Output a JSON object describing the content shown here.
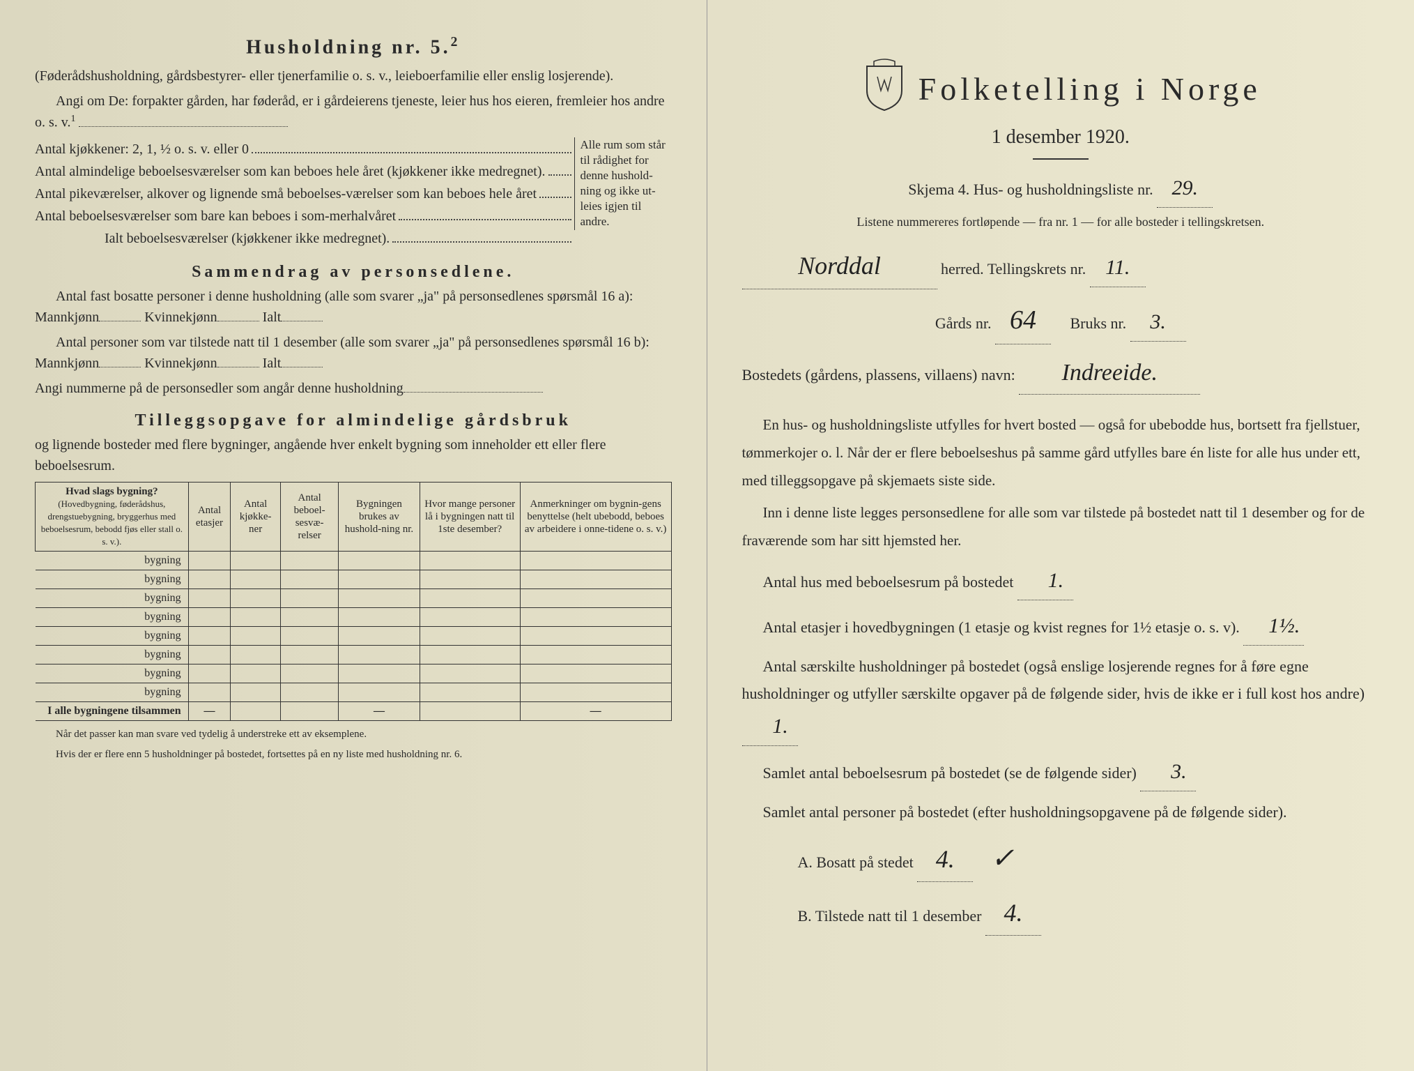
{
  "left": {
    "husholdning_title": "Husholdning nr. 5.",
    "husholdning_super": "2",
    "husholdning_note": "(Føderådshusholdning, gårdsbestyrer- eller tjenerfamilie o. s. v., leieboerfamilie eller enslig losjerende).",
    "angi_om": "Angi om De:  forpakter gården, har føderåd, er i gårdeierens tjeneste, leier hus hos eieren, fremleier hos andre o. s. v.",
    "angi_super": "1",
    "kitchen_line": "Antal kjøkkener: 2, 1, ½ o. s. v. eller 0",
    "rooms": {
      "r1": "Antal almindelige beboelsesværelser som kan beboes hele året (kjøkkener ikke medregnet).",
      "r2": "Antal pikeværelser, alkover og lignende små beboelses-værelser som kan beboes hele året",
      "r3": "Antal beboelsesværelser som bare kan beboes i som-merhalvåret",
      "total": "Ialt beboelsesværelser (kjøkkener ikke medregnet)."
    },
    "bracket_text": "Alle rum som står til rådighet for denne hushold-ning og ikke ut-leies igjen til andre.",
    "sammendrag_title": "Sammendrag av personsedlene.",
    "samm_line1": "Antal fast bosatte personer i denne husholdning (alle som svarer „ja\" på personsedlenes spørsmål 16 a): Mannkjønn",
    "samm_kvinn": "Kvinnekjønn",
    "samm_ialt": "Ialt",
    "samm_line2": "Antal personer som var tilstede natt til 1 desember (alle som svarer „ja\" på personsedlenes spørsmål 16 b): Mannkjønn",
    "samm_line3": "Angi nummerne på de personsedler som angår denne husholdning",
    "tillegg_title": "Tilleggsopgave for almindelige gårdsbruk",
    "tillegg_sub": "og lignende bosteder med flere bygninger, angående hver enkelt bygning som inneholder ett eller flere beboelsesrum.",
    "table": {
      "headers": {
        "h1": "Hvad slags bygning?",
        "h1_sub": "(Hovedbygning, føderådshus, drengstuebygning, bryggerhus med beboelsesrum, bebodd fjøs eller stall o. s. v.).",
        "h2": "Antal etasjer",
        "h3": "Antal kjøkke-ner",
        "h4": "Antal beboel-sesvæ-relser",
        "h5": "Bygningen brukes av hushold-ning nr.",
        "h6": "Hvor mange personer lå i bygningen natt til 1ste desember?",
        "h7": "Anmerkninger om bygnin-gens benyttelse (helt ubebodd, beboes av arbeidere i onne-tidene o. s. v.)"
      },
      "row_label": "bygning",
      "total_label": "I alle bygningene tilsammen",
      "dash": "—"
    },
    "footnote1": "Når det passer kan man svare ved tydelig å understreke ett av eksemplene.",
    "footnote2": "Hvis der er flere enn 5 husholdninger på bostedet, fortsettes på en ny liste med husholdning nr. 6."
  },
  "right": {
    "main_title": "Folketelling  i  Norge",
    "date": "1 desember 1920.",
    "skjema": "Skjema 4.   Hus- og husholdningsliste nr.",
    "liste_nr": "29.",
    "list_note": "Listene nummereres fortløpende — fra nr. 1 — for alle bosteder i tellingskretsen.",
    "herred_value": "Norddal",
    "herred_label": "herred.   Tellingskrets nr.",
    "krets_nr": "11.",
    "gards_label": "Gårds nr.",
    "gards_nr": "64",
    "bruks_label": "Bruks nr.",
    "bruks_nr": "3.",
    "bosted_label": "Bostedets (gårdens, plassens, villaens) navn:",
    "bosted_value": "Indreeide.",
    "para1": "En hus- og husholdningsliste utfylles for hvert bosted — også for ubebodde hus, bortsett fra fjellstuer, tømmerkojer o. l.  Når der er flere beboelseshus på samme gård utfylles bare én liste for alle hus under ett, med tilleggsopgave på skjemaets siste side.",
    "para2": "Inn i denne liste legges personsedlene for alle som var tilstede på bostedet natt til 1 desember og for de fraværende som har sitt hjemsted her.",
    "q1_label": "Antal hus med beboelsesrum på bostedet",
    "q1_value": "1.",
    "q2_label_a": "Antal etasjer i hovedbygningen (1 etasje og kvist regnes for 1½ etasje o. s. v).",
    "q2_value": "1½.",
    "q3_label": "Antal særskilte husholdninger på bostedet (også enslige losjerende regnes for å føre egne husholdninger og utfyller særskilte opgaver på de følgende sider, hvis de ikke er i full kost hos andre)",
    "q3_value": "1.",
    "q4_label": "Samlet antal beboelsesrum på bostedet (se de følgende sider)",
    "q4_value": "3.",
    "q5_label": "Samlet antal personer på bostedet (efter husholdningsopgavene på de følgende sider).",
    "qA_label": "A.  Bosatt på stedet",
    "qA_value": "4.",
    "qB_label": "B.  Tilstede natt til 1 desember",
    "qB_value": "4."
  },
  "colors": {
    "paper": "#e4e0c8",
    "text": "#2a2a2a",
    "border": "#333333"
  }
}
